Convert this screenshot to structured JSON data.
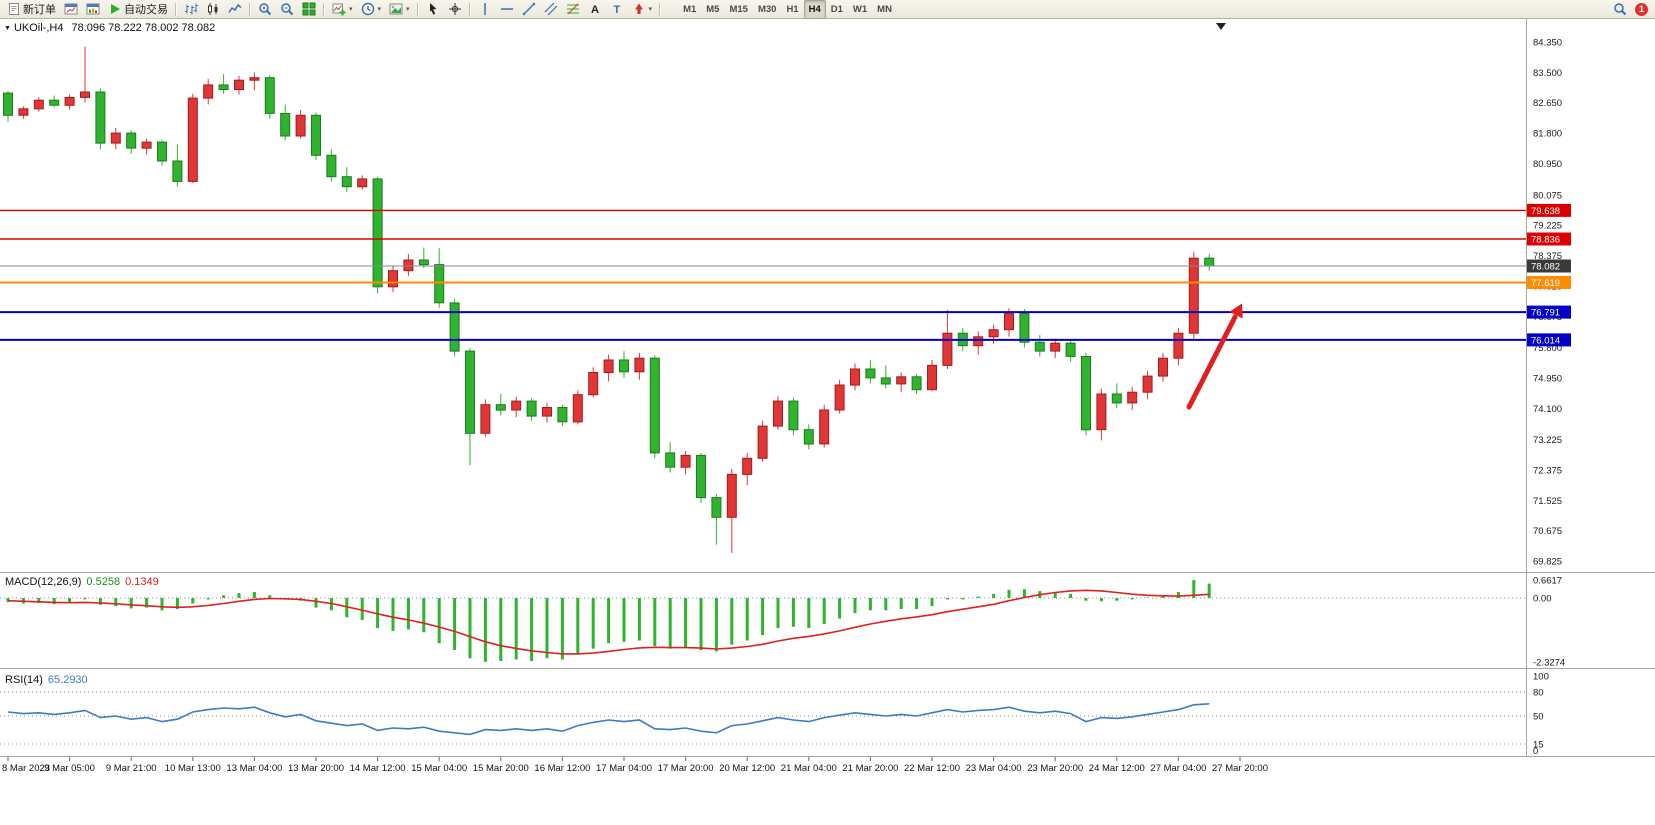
{
  "toolbar": {
    "items": [
      {
        "name": "new-order",
        "icon": "doc",
        "label": "新订单"
      },
      {
        "name": "charts-window",
        "icon": "chartwin"
      },
      {
        "name": "data-window",
        "icon": "datawin"
      },
      {
        "name": "auto-trading",
        "icon": "play",
        "label": "自动交易"
      },
      {
        "sep": true
      },
      {
        "name": "bar-chart",
        "icon": "bars"
      },
      {
        "name": "candlestick-chart",
        "icon": "candles"
      },
      {
        "name": "line-chart",
        "icon": "linechart"
      },
      {
        "sep": true
      },
      {
        "name": "zoom-in",
        "icon": "zoomin"
      },
      {
        "name": "zoom-out",
        "icon": "zoomout"
      },
      {
        "name": "tile-windows",
        "icon": "tile"
      },
      {
        "sep": true
      },
      {
        "name": "new-chart",
        "icon": "newchart",
        "dropdown": true
      },
      {
        "name": "periods-menu",
        "icon": "clock",
        "dropdown": true
      },
      {
        "name": "templates-menu",
        "icon": "template",
        "dropdown": true
      },
      {
        "sep": true
      },
      {
        "name": "cursor",
        "icon": "cursor"
      },
      {
        "name": "crosshair",
        "icon": "crosshair"
      },
      {
        "sep": true
      },
      {
        "name": "vertical-line",
        "icon": "vline"
      },
      {
        "name": "horizontal-line",
        "icon": "hline"
      },
      {
        "name": "trendline",
        "icon": "trend"
      },
      {
        "name": "equidistant-channel",
        "icon": "channel"
      },
      {
        "name": "fibonacci-retracement",
        "icon": "fibo"
      },
      {
        "name": "text",
        "icon": "textA"
      },
      {
        "name": "text-label",
        "icon": "labelT"
      },
      {
        "name": "arrows",
        "icon": "arrowobj",
        "dropdown": true
      },
      {
        "sep": true
      }
    ],
    "timeframes": [
      "M1",
      "M5",
      "M15",
      "M30",
      "H1",
      "H4",
      "D1",
      "W1",
      "MN"
    ],
    "active_timeframe": "H4",
    "right_items": [
      {
        "name": "search",
        "icon": "search"
      }
    ],
    "notification_badge": "1"
  },
  "chart_data": {
    "type": "candlestick+indicators",
    "symbol": "UKOil-",
    "period": "H4",
    "title": "UKOil-,H4",
    "ohlc_header": "78.096 78.222 78.002 78.082",
    "bull_color": "#e23535",
    "bear_color": "#2fb42f",
    "price_axis": [
      "84.350",
      "83.500",
      "82.650",
      "81.800",
      "80.950",
      "80.075",
      "79.225",
      "78.375",
      "77.525",
      "76.675",
      "75.800",
      "74.950",
      "74.100",
      "73.225",
      "72.375",
      "71.525",
      "70.675",
      "69.825"
    ],
    "candles": [
      [
        82.92,
        82.98,
        82.12,
        82.3
      ],
      [
        82.3,
        82.55,
        82.2,
        82.48
      ],
      [
        82.48,
        82.8,
        82.4,
        82.72
      ],
      [
        82.72,
        82.85,
        82.52,
        82.58
      ],
      [
        82.58,
        82.88,
        82.45,
        82.8
      ],
      [
        82.8,
        84.22,
        82.65,
        82.95
      ],
      [
        82.95,
        83.05,
        81.35,
        81.52
      ],
      [
        81.52,
        81.95,
        81.35,
        81.8
      ],
      [
        81.8,
        81.88,
        81.22,
        81.38
      ],
      [
        81.38,
        81.65,
        81.2,
        81.55
      ],
      [
        81.55,
        81.62,
        80.88,
        81.02
      ],
      [
        81.02,
        81.48,
        80.3,
        80.45
      ],
      [
        80.45,
        82.9,
        80.4,
        82.78
      ],
      [
        82.78,
        83.32,
        82.6,
        83.15
      ],
      [
        83.15,
        83.45,
        82.9,
        83.02
      ],
      [
        83.02,
        83.4,
        82.88,
        83.28
      ],
      [
        83.28,
        83.5,
        83.0,
        83.35
      ],
      [
        83.35,
        83.42,
        82.2,
        82.35
      ],
      [
        82.35,
        82.6,
        81.6,
        81.72
      ],
      [
        81.72,
        82.45,
        81.65,
        82.3
      ],
      [
        82.3,
        82.38,
        81.05,
        81.18
      ],
      [
        81.18,
        81.35,
        80.45,
        80.58
      ],
      [
        80.58,
        80.85,
        80.15,
        80.3
      ],
      [
        80.3,
        80.62,
        80.22,
        80.52
      ],
      [
        80.52,
        80.58,
        77.32,
        77.5
      ],
      [
        77.5,
        78.1,
        77.35,
        77.95
      ],
      [
        77.95,
        78.42,
        77.8,
        78.25
      ],
      [
        78.25,
        78.6,
        78.02,
        78.12
      ],
      [
        78.12,
        78.58,
        76.9,
        77.05
      ],
      [
        77.05,
        77.15,
        75.55,
        75.7
      ],
      [
        75.7,
        75.78,
        72.5,
        73.4
      ],
      [
        73.4,
        74.35,
        73.3,
        74.2
      ],
      [
        74.2,
        74.5,
        73.9,
        74.05
      ],
      [
        74.05,
        74.42,
        73.85,
        74.3
      ],
      [
        74.3,
        74.38,
        73.75,
        73.88
      ],
      [
        73.88,
        74.25,
        73.7,
        74.12
      ],
      [
        74.12,
        74.2,
        73.6,
        73.72
      ],
      [
        73.72,
        74.6,
        73.65,
        74.48
      ],
      [
        74.48,
        75.25,
        74.4,
        75.1
      ],
      [
        75.1,
        75.6,
        74.85,
        75.45
      ],
      [
        75.45,
        75.7,
        74.95,
        75.12
      ],
      [
        75.12,
        75.65,
        74.9,
        75.5
      ],
      [
        75.5,
        75.58,
        72.7,
        72.85
      ],
      [
        72.85,
        73.15,
        72.3,
        72.45
      ],
      [
        72.45,
        72.9,
        72.25,
        72.78
      ],
      [
        72.78,
        72.85,
        71.45,
        71.6
      ],
      [
        71.6,
        71.7,
        70.28,
        71.05
      ],
      [
        71.05,
        72.4,
        70.05,
        72.25
      ],
      [
        72.25,
        72.85,
        71.95,
        72.7
      ],
      [
        72.7,
        73.75,
        72.6,
        73.6
      ],
      [
        73.6,
        74.45,
        73.5,
        74.3
      ],
      [
        74.3,
        74.4,
        73.35,
        73.5
      ],
      [
        73.5,
        73.65,
        72.95,
        73.1
      ],
      [
        73.1,
        74.2,
        73.0,
        74.05
      ],
      [
        74.05,
        74.9,
        73.95,
        74.75
      ],
      [
        74.75,
        75.35,
        74.6,
        75.2
      ],
      [
        75.2,
        75.45,
        74.8,
        74.95
      ],
      [
        74.95,
        75.3,
        74.65,
        74.78
      ],
      [
        74.78,
        75.1,
        74.55,
        74.98
      ],
      [
        74.98,
        75.05,
        74.5,
        74.62
      ],
      [
        74.62,
        75.45,
        74.58,
        75.3
      ],
      [
        75.3,
        76.85,
        75.2,
        76.2
      ],
      [
        76.2,
        76.35,
        75.7,
        75.85
      ],
      [
        75.85,
        76.25,
        75.6,
        76.1
      ],
      [
        76.1,
        76.45,
        75.9,
        76.3
      ],
      [
        76.3,
        76.9,
        76.1,
        76.75
      ],
      [
        76.75,
        76.88,
        75.8,
        75.95
      ],
      [
        75.95,
        76.15,
        75.55,
        75.7
      ],
      [
        75.7,
        76.05,
        75.5,
        75.92
      ],
      [
        75.92,
        76.0,
        75.4,
        75.55
      ],
      [
        75.55,
        75.65,
        73.35,
        73.5
      ],
      [
        73.5,
        74.65,
        73.2,
        74.5
      ],
      [
        74.5,
        74.8,
        74.1,
        74.25
      ],
      [
        74.25,
        74.7,
        74.05,
        74.55
      ],
      [
        74.55,
        75.15,
        74.35,
        75.0
      ],
      [
        75.0,
        75.65,
        74.85,
        75.5
      ],
      [
        75.5,
        76.35,
        75.3,
        76.2
      ],
      [
        76.2,
        78.48,
        76.05,
        78.3
      ],
      [
        78.3,
        78.42,
        77.95,
        78.082
      ]
    ],
    "levels": [
      {
        "price": 79.638,
        "label": "79.638",
        "color": "#dd0000",
        "thick": 1.4
      },
      {
        "price": 78.836,
        "label": "78.836",
        "color": "#dd0000",
        "thick": 1.4
      },
      {
        "price": 78.082,
        "label": "78.082",
        "color": "#8a8a8a",
        "label_bg": "#3a3a3a",
        "thick": 1
      },
      {
        "price": 77.619,
        "label": "77.619",
        "color": "#ff8c00",
        "thick": 2
      },
      {
        "price": 76.791,
        "label": "76.791",
        "color": "#0000c8",
        "thick": 2
      },
      {
        "price": 76.014,
        "label": "76.014",
        "color": "#0000c8",
        "thick": 2
      }
    ],
    "arrow": {
      "color": "#e02020"
    },
    "macd": {
      "title": "MACD(12,26,9)",
      "value": "0.5258",
      "signal_value": "0.1349",
      "hist_color": "#2fb42f",
      "signal_color": "#dd2222",
      "scale": [
        "0.6617",
        "0.00",
        "-2.3274"
      ],
      "histogram": [
        -0.15,
        -0.2,
        -0.18,
        -0.22,
        -0.15,
        -0.05,
        -0.25,
        -0.3,
        -0.38,
        -0.35,
        -0.45,
        -0.4,
        -0.2,
        -0.05,
        0.1,
        0.18,
        0.22,
        0.1,
        -0.05,
        -0.1,
        -0.35,
        -0.45,
        -0.7,
        -0.8,
        -1.1,
        -1.2,
        -1.15,
        -1.25,
        -1.65,
        -1.9,
        -2.2,
        -2.3274,
        -2.3,
        -2.25,
        -2.3,
        -2.2,
        -2.25,
        -2.05,
        -1.85,
        -1.65,
        -1.6,
        -1.55,
        -1.75,
        -1.85,
        -1.8,
        -1.9,
        -1.95,
        -1.7,
        -1.55,
        -1.35,
        -1.1,
        -1.05,
        -1.1,
        -0.95,
        -0.75,
        -0.55,
        -0.45,
        -0.45,
        -0.4,
        -0.4,
        -0.3,
        -0.05,
        -0.05,
        0.05,
        0.15,
        0.3,
        0.32,
        0.25,
        0.22,
        0.15,
        -0.1,
        -0.12,
        -0.1,
        -0.05,
        0.02,
        0.1,
        0.22,
        0.6617,
        0.5258
      ],
      "signal": [
        -0.1,
        -0.12,
        -0.14,
        -0.16,
        -0.17,
        -0.16,
        -0.18,
        -0.21,
        -0.25,
        -0.28,
        -0.32,
        -0.34,
        -0.32,
        -0.27,
        -0.2,
        -0.12,
        -0.05,
        -0.02,
        -0.03,
        -0.05,
        -0.12,
        -0.2,
        -0.32,
        -0.44,
        -0.58,
        -0.7,
        -0.8,
        -0.92,
        -1.06,
        -1.22,
        -1.41,
        -1.6,
        -1.74,
        -1.84,
        -1.93,
        -1.99,
        -2.04,
        -2.04,
        -2.01,
        -1.95,
        -1.88,
        -1.82,
        -1.8,
        -1.81,
        -1.81,
        -1.83,
        -1.86,
        -1.83,
        -1.77,
        -1.69,
        -1.57,
        -1.47,
        -1.4,
        -1.31,
        -1.2,
        -1.07,
        -0.95,
        -0.85,
        -0.76,
        -0.69,
        -0.61,
        -0.5,
        -0.41,
        -0.32,
        -0.23,
        -0.1,
        0.02,
        0.12,
        0.2,
        0.26,
        0.28,
        0.26,
        0.2,
        0.14,
        0.1,
        0.08,
        0.07,
        0.1,
        0.1349
      ]
    },
    "rsi": {
      "title": "RSI(14)",
      "value": "65.2930",
      "color": "#3e7bc4",
      "scale": [
        "100",
        "80",
        "50",
        "15",
        "0"
      ],
      "levels": [
        80,
        50,
        15
      ],
      "values": [
        55,
        53,
        54,
        52,
        54,
        57,
        48,
        50,
        46,
        48,
        43,
        46,
        55,
        58,
        60,
        59,
        61,
        54,
        49,
        52,
        44,
        41,
        38,
        40,
        32,
        35,
        34,
        36,
        31,
        29,
        27,
        33,
        32,
        34,
        32,
        34,
        31,
        38,
        42,
        45,
        43,
        45,
        34,
        33,
        35,
        31,
        29,
        38,
        40,
        44,
        48,
        45,
        43,
        48,
        51,
        54,
        52,
        50,
        52,
        50,
        54,
        58,
        55,
        57,
        58,
        61,
        56,
        54,
        56,
        53,
        43,
        48,
        47,
        49,
        52,
        55,
        58,
        64,
        65.293
      ]
    },
    "time_axis": [
      "8 Mar 2023",
      "9 Mar 05:00",
      "9 Mar 21:00",
      "10 Mar 13:00",
      "13 Mar 04:00",
      "13 Mar 20:00",
      "14 Mar 12:00",
      "15 Mar 04:00",
      "15 Mar 20:00",
      "16 Mar 12:00",
      "17 Mar 04:00",
      "17 Mar 20:00",
      "20 Mar 12:00",
      "21 Mar 04:00",
      "21 Mar 20:00",
      "22 Mar 12:00",
      "23 Mar 04:00",
      "23 Mar 20:00",
      "24 Mar 12:00",
      "27 Mar 04:00",
      "27 Mar 20:00"
    ]
  }
}
